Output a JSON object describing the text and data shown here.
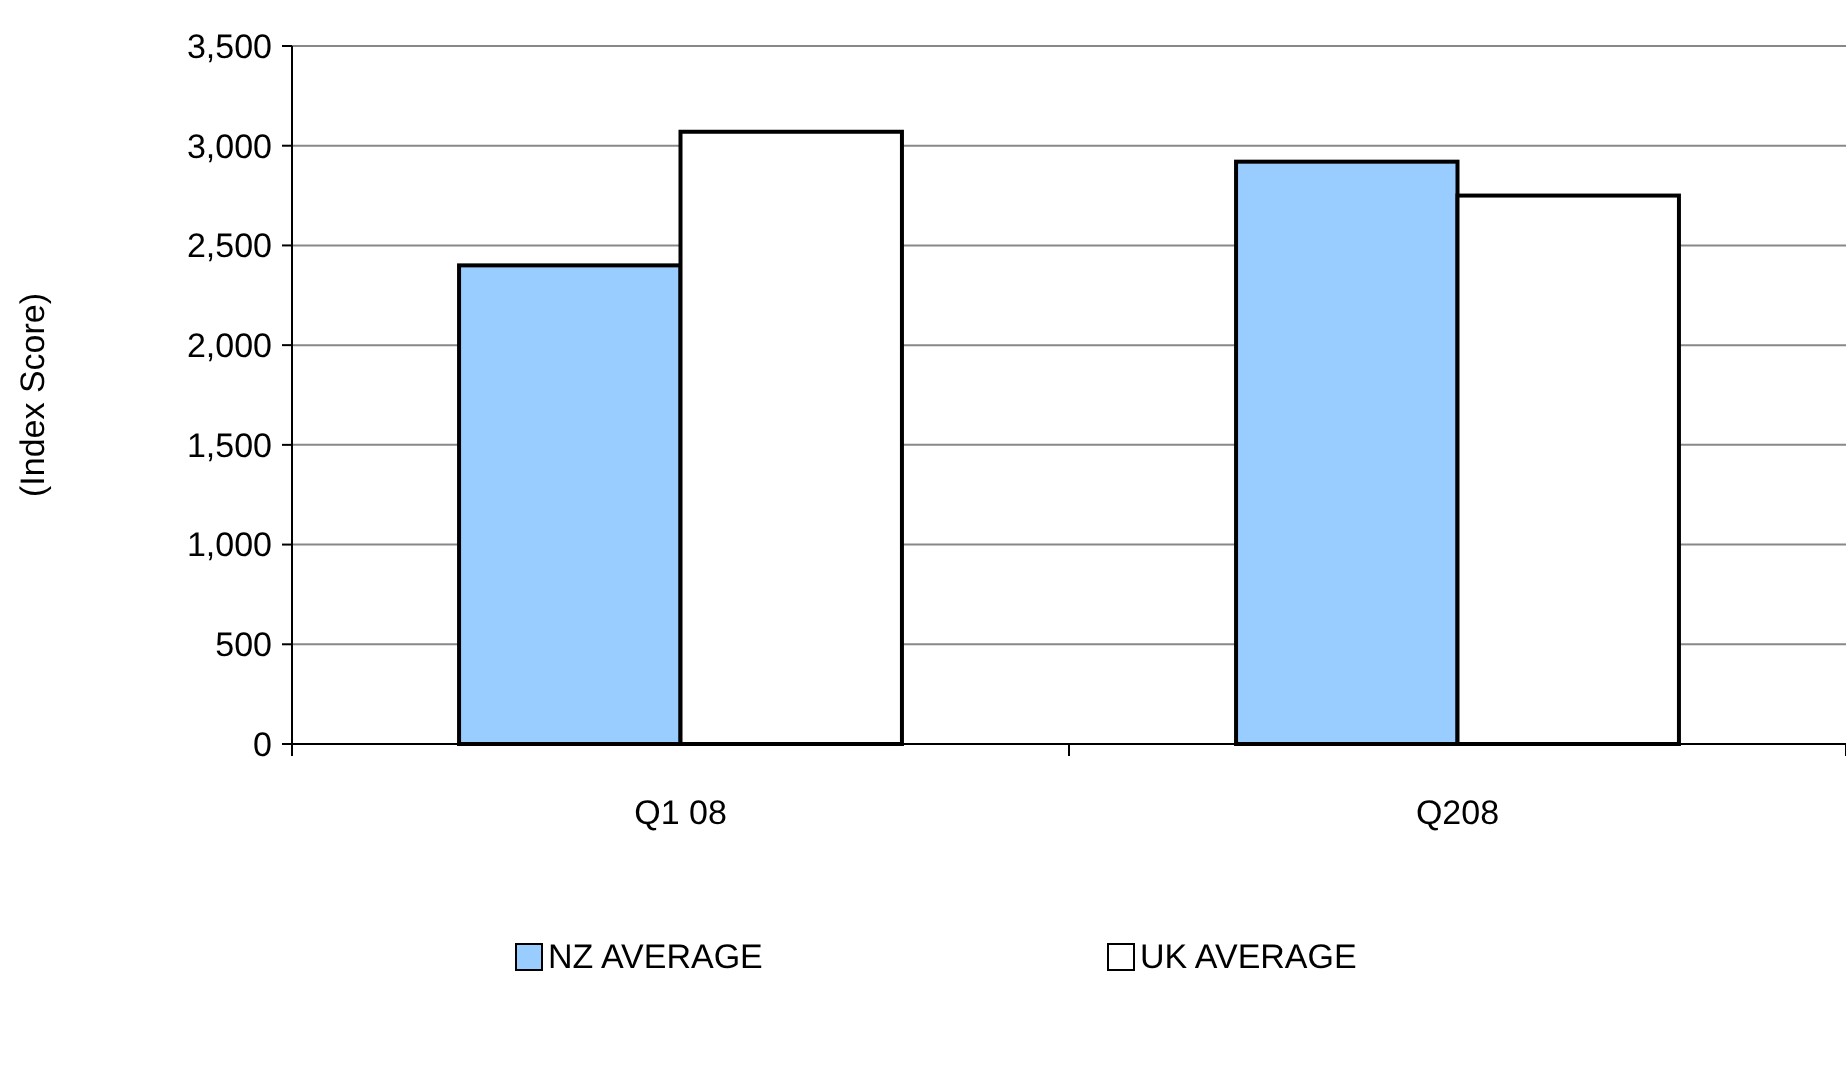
{
  "chart_data": {
    "type": "bar",
    "ylabel": "(Index Score)",
    "categories": [
      "Q1 08",
      "Q208"
    ],
    "series": [
      {
        "name": "NZ AVERAGE",
        "color": "#99ccff",
        "values": [
          2400,
          2920
        ]
      },
      {
        "name": "UK AVERAGE",
        "color": "#ffffff",
        "values": [
          3070,
          2750
        ]
      }
    ],
    "ylim": [
      0,
      3500
    ],
    "yticks": [
      {
        "value": 0,
        "label": "0"
      },
      {
        "value": 500,
        "label": "500"
      },
      {
        "value": 1000,
        "label": "1,000"
      },
      {
        "value": 1500,
        "label": "1,500"
      },
      {
        "value": 2000,
        "label": "2,000"
      },
      {
        "value": 2500,
        "label": "2,500"
      },
      {
        "value": 3000,
        "label": "3,000"
      },
      {
        "value": 3500,
        "label": "3,500"
      }
    ],
    "grid": "y",
    "legend": "bottom"
  }
}
